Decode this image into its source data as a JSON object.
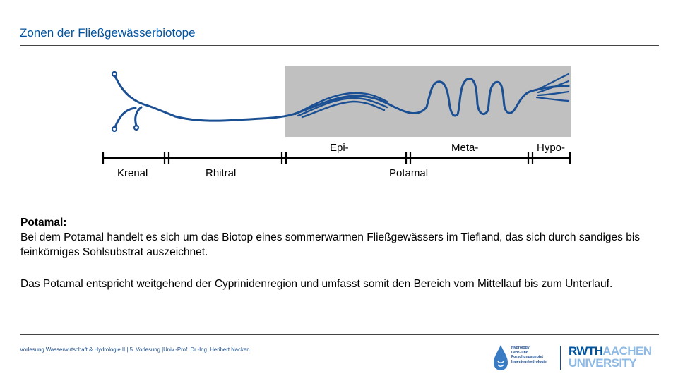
{
  "header": {
    "title": "Zonen der Fließgewässerbiotope"
  },
  "diagram": {
    "upper_labels": [
      "Epi-",
      "Meta-",
      "Hypo-"
    ],
    "lower_labels": [
      "Krenal",
      "Rhitral",
      "Potamal"
    ],
    "river_color": "#1b4f93",
    "highlight_color": "#c0c0c0"
  },
  "section1": {
    "heading": "Potamal:",
    "text": "Bei dem Potamal handelt es sich um das Biotop eines sommerwarmen Fließgewässers im Tiefland, das sich durch sandiges bis feinkörniges Sohlsubstrat auszeichnet."
  },
  "section2": {
    "text": "Das Potamal entspricht weitgehend der Cyprinidenregion und umfasst somit den Bereich vom Mittellauf bis zum Unterlauf."
  },
  "footer": {
    "text": "Vorlesung Wasserwirtschaft & Hydrologie II | 5. Vorlesung |Univ.-Prof. Dr.-Ing. Heribert Nacken",
    "logo_hydro_lines": [
      "Hydrology",
      "Lehr- und",
      "Forschungsgebiet",
      "Ingenieurhydrologie"
    ],
    "logo_rwth": "RWTH",
    "logo_aachen": "AACHEN",
    "logo_university": "UNIVERSITY"
  }
}
